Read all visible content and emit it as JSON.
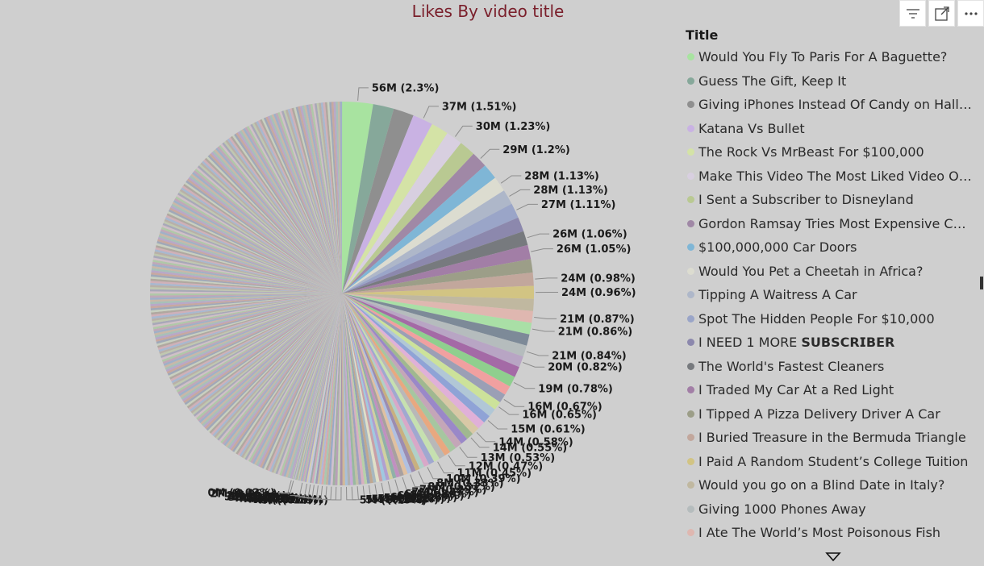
{
  "chart_data": {
    "type": "pie",
    "title": "Likes By video title",
    "legend_title": "Title",
    "legend_position": "right",
    "slices": [
      {
        "label": "56M (2.3%)",
        "value": 2.3,
        "color": "#a8e3a0"
      },
      {
        "label": "",
        "value": 1.55,
        "color": "#86a89a"
      },
      {
        "label": "",
        "value": 1.52,
        "color": "#8f8f8f"
      },
      {
        "label": "37M (1.51%)",
        "value": 1.51,
        "color": "#c9b2e3"
      },
      {
        "label": "",
        "value": 1.3,
        "color": "#d4e3a6"
      },
      {
        "label": "30M (1.23%)",
        "value": 1.23,
        "color": "#d8cfe0"
      },
      {
        "label": "",
        "value": 1.22,
        "color": "#b9c992"
      },
      {
        "label": "29M (1.2%)",
        "value": 1.2,
        "color": "#a088a6"
      },
      {
        "label": "",
        "value": 1.17,
        "color": "#7fb6d6"
      },
      {
        "label": "28M (1.13%)",
        "value": 1.13,
        "color": "#dcdcd0"
      },
      {
        "label": "28M (1.13%)",
        "value": 1.13,
        "color": "#aeb7c9"
      },
      {
        "label": "27M (1.11%)",
        "value": 1.11,
        "color": "#9aa5c8"
      },
      {
        "label": "",
        "value": 1.08,
        "color": "#8c88ad"
      },
      {
        "label": "26M (1.06%)",
        "value": 1.06,
        "color": "#777a7e"
      },
      {
        "label": "26M (1.05%)",
        "value": 1.05,
        "color": "#a27ea6"
      },
      {
        "label": "",
        "value": 1.0,
        "color": "#9c9e88"
      },
      {
        "label": "24M (0.98%)",
        "value": 0.98,
        "color": "#c2a79c"
      },
      {
        "label": "24M (0.96%)",
        "value": 0.96,
        "color": "#d2c483"
      },
      {
        "label": "",
        "value": 0.9,
        "color": "#c0b8a0"
      },
      {
        "label": "21M (0.87%)",
        "value": 0.87,
        "color": "#dfb7b0"
      },
      {
        "label": "21M (0.86%)",
        "value": 0.86,
        "color": "#a9dfa6"
      },
      {
        "label": "",
        "value": 0.85,
        "color": "#7d8a98"
      },
      {
        "label": "21M (0.84%)",
        "value": 0.84,
        "color": "#b5bcbd"
      },
      {
        "label": "20M (0.82%)",
        "value": 0.82,
        "color": "#b8a5c4"
      },
      {
        "label": "",
        "value": 0.8,
        "color": "#a46aa6"
      },
      {
        "label": "19M (0.78%)",
        "value": 0.78,
        "color": "#8fcf8e"
      },
      {
        "label": "",
        "value": 0.7,
        "color": "#f0a0a0"
      },
      {
        "label": "16M (0.67%)",
        "value": 0.67,
        "color": "#9b9fb5"
      },
      {
        "label": "16M (0.65%)",
        "value": 0.65,
        "color": "#cce29a"
      },
      {
        "label": "",
        "value": 0.63,
        "color": "#b1c7d6"
      },
      {
        "label": "15M (0.61%)",
        "value": 0.61,
        "color": "#8fa3d6"
      },
      {
        "label": "",
        "value": 0.6,
        "color": "#e0b0d8"
      },
      {
        "label": "14M (0.58%)",
        "value": 0.58,
        "color": "#d8c8a6"
      },
      {
        "label": "14M (0.55%)",
        "value": 0.55,
        "color": "#a0b890"
      },
      {
        "label": "",
        "value": 0.54,
        "color": "#9a88c8"
      },
      {
        "label": "13M (0.53%)",
        "value": 0.53,
        "color": "#c4a6b8"
      },
      {
        "label": "",
        "value": 0.5,
        "color": "#a6c6a0"
      },
      {
        "label": "12M (0.47%)",
        "value": 0.47,
        "color": "#e8a880"
      },
      {
        "label": "",
        "value": 0.46,
        "color": "#b8b8b8"
      },
      {
        "label": "11M (0.45%)",
        "value": 0.45,
        "color": "#c6e0b0"
      },
      {
        "label": "",
        "value": 0.42,
        "color": "#a0a8d0"
      },
      {
        "label": "10M (0.39%)",
        "value": 0.39,
        "color": "#d8a8c8"
      },
      {
        "label": "",
        "value": 0.36,
        "color": "#b0d0c8"
      },
      {
        "label": "8M (0.33%)",
        "value": 0.33,
        "color": "#c8b080"
      },
      {
        "label": "",
        "value": 0.32,
        "color": "#9c8cb0"
      },
      {
        "label": "8M (0.31%)",
        "value": 0.31,
        "color": "#b0c0e0"
      },
      {
        "label": "",
        "value": 0.3,
        "color": "#e0c0a0"
      },
      {
        "label": "7M (0.29%)",
        "value": 0.29,
        "color": "#a8a0a0"
      },
      {
        "label": "",
        "value": 0.28,
        "color": "#c090c0"
      },
      {
        "label": "7M (0.27%)",
        "value": 0.27,
        "color": "#90b0a8"
      },
      {
        "label": "",
        "value": 0.26,
        "color": "#d0d0a0"
      },
      {
        "label": "6M (0.26%)",
        "value": 0.26,
        "color": "#b0a0d0"
      },
      {
        "label": "",
        "value": 0.25,
        "color": "#a0c8e0"
      },
      {
        "label": "6M (0.24%)",
        "value": 0.24,
        "color": "#c8a0a8"
      },
      {
        "label": "",
        "value": 0.24,
        "color": "#e0e0c8"
      },
      {
        "label": "6M (0.23%)",
        "value": 0.23,
        "color": "#a8b8c0"
      },
      {
        "label": "",
        "value": 0.22,
        "color": "#c0a890"
      },
      {
        "label": "5M (0.22%)",
        "value": 0.22,
        "color": "#90a0b8"
      },
      {
        "label": "",
        "value": 0.21,
        "color": "#b8d0a8"
      },
      {
        "label": "5M (0.21%)",
        "value": 0.21,
        "color": "#d8b0c0"
      },
      {
        "label": "",
        "value": 0.21,
        "color": "#a0a0c0"
      },
      {
        "label": "5M (0.21%)",
        "value": 0.21,
        "color": "#c0c0a8"
      },
      {
        "label": "",
        "value": 0.2,
        "color": "#98b8a0"
      },
      {
        "label": "5M (0.2%)",
        "value": 0.2,
        "color": "#c8a8d8"
      },
      {
        "label": "",
        "value": 0.2,
        "color": "#b0b0b0"
      },
      {
        "label": "5M (0.19%)",
        "value": 0.19,
        "color": "#a8c0d8"
      },
      {
        "label": "",
        "value": 0.19,
        "color": "#d0b898"
      },
      {
        "label": "5M (0.19%)",
        "value": 0.19,
        "color": "#a890a8"
      },
      {
        "label": "",
        "value": 0.18,
        "color": "#c8d8b8"
      },
      {
        "label": "4M (0.18%)",
        "value": 0.18,
        "color": "#b8a0b8"
      },
      {
        "label": "",
        "value": 0.17,
        "color": "#a0b0a0"
      },
      {
        "label": "4M (0.17%)",
        "value": 0.17,
        "color": "#d0c0d0"
      },
      {
        "label": "",
        "value": 0.17,
        "color": "#98a8c8"
      },
      {
        "label": "4M (0.17%)",
        "value": 0.17,
        "color": "#c0b0a0"
      },
      {
        "label": "",
        "value": 0.16,
        "color": "#a8c8b0"
      },
      {
        "label": "4M (0.16%)",
        "value": 0.16,
        "color": "#d8a8a8"
      },
      {
        "label": "",
        "value": 0.15,
        "color": "#b0b8d8"
      },
      {
        "label": "4M (0.15%)",
        "value": 0.15,
        "color": "#c8c0a0"
      },
      {
        "label": "",
        "value": 0.15,
        "color": "#a098b8"
      },
      {
        "label": "4M (0.14%)",
        "value": 0.14,
        "color": "#b8d0c8"
      },
      {
        "label": "",
        "value": 0.14,
        "color": "#d0a8b8"
      },
      {
        "label": "3M (0.13%)",
        "value": 0.13,
        "color": "#a0a8a8"
      },
      {
        "label": "",
        "value": 0.13,
        "color": "#c0c8e0"
      },
      {
        "label": "3M (0.12%)",
        "value": 0.12,
        "color": "#d8d0b0"
      },
      {
        "label": "",
        "value": 0.12,
        "color": "#a8a0c8"
      },
      {
        "label": "",
        "value": 0.11,
        "color": "#b8c0a8"
      },
      {
        "label": "2M (0.1%)",
        "value": 0.1,
        "color": "#c8a0c0"
      },
      {
        "label": "",
        "value": 0.1,
        "color": "#98b8c0"
      },
      {
        "label": "",
        "value": 0.09,
        "color": "#d0b8a8"
      },
      {
        "label": "",
        "value": 0.09,
        "color": "#a8b0c0"
      },
      {
        "label": "",
        "value": 0.08,
        "color": "#c0d0b0"
      },
      {
        "label": "",
        "value": 0.08,
        "color": "#b8a8a0"
      },
      {
        "label": "",
        "value": 0.07,
        "color": "#a0c0b0"
      },
      {
        "label": "",
        "value": 0.07,
        "color": "#c8b8d0"
      },
      {
        "label": "2M (0.06%)",
        "value": 0.06,
        "color": "#a8a8b0"
      },
      {
        "label": "",
        "value": 0.05,
        "color": "#b0c8c0"
      },
      {
        "label": "",
        "value": 0.04,
        "color": "#d0c0b0"
      },
      {
        "label": "",
        "value": 0.03,
        "color": "#a0a0a8"
      },
      {
        "label": "0M (0.02%)",
        "value": 0.02,
        "color": "#b8b0c0"
      }
    ],
    "remainder_value": 40.47,
    "legend": [
      {
        "text": "Would You Fly To Paris For A Baguette?",
        "color": "#a8e3a0"
      },
      {
        "text": "Guess The Gift, Keep It",
        "color": "#86a89a"
      },
      {
        "text": "Giving iPhones Instead Of Candy on Hallo...",
        "color": "#8f8f8f"
      },
      {
        "text": "Katana Vs Bullet",
        "color": "#c9b2e3"
      },
      {
        "text": "The Rock Vs MrBeast For $100,000",
        "color": "#d4e3a6"
      },
      {
        "text": "Make This Video The Most Liked Video On...",
        "color": "#d8cfe0"
      },
      {
        "text": "I Sent a Subscriber to Disneyland",
        "color": "#b9c992"
      },
      {
        "text": "Gordon Ramsay Tries Most Expensive Cho...",
        "color": "#a088a6"
      },
      {
        "text": "$100,000,000 Car Doors",
        "color": "#7fb6d6"
      },
      {
        "text": "Would You Pet a Cheetah in Africa?",
        "color": "#dcdcd0"
      },
      {
        "text": "Tipping A Waitress A Car",
        "color": "#aeb7c9"
      },
      {
        "text": "Spot The Hidden People For $10,000",
        "color": "#9aa5c8"
      },
      {
        "text": "I NEED 1 MORE 𝗦𝗨𝗕𝗦𝗖𝗥𝗜𝗕𝗘𝗥",
        "color": "#8c88ad"
      },
      {
        "text": "The World's Fastest Cleaners",
        "color": "#777a7e"
      },
      {
        "text": "I Traded My Car At a Red Light",
        "color": "#a27ea6"
      },
      {
        "text": "I Tipped A Pizza Delivery Driver A Car",
        "color": "#9c9e88"
      },
      {
        "text": "I Buried Treasure in the Bermuda Triangle",
        "color": "#c2a79c"
      },
      {
        "text": "I Paid A Random Student’s College Tuition",
        "color": "#d2c483"
      },
      {
        "text": "Would you go on a Blind Date in Italy?",
        "color": "#c0b8a0"
      },
      {
        "text": "Giving 1000 Phones Away",
        "color": "#b5bcbd"
      },
      {
        "text": "I Ate The World’s Most Poisonous Fish",
        "color": "#dfb7b0"
      }
    ]
  },
  "toolbar": {
    "icons": [
      "filter-icon",
      "focus-mode-icon",
      "more-options-icon"
    ]
  }
}
